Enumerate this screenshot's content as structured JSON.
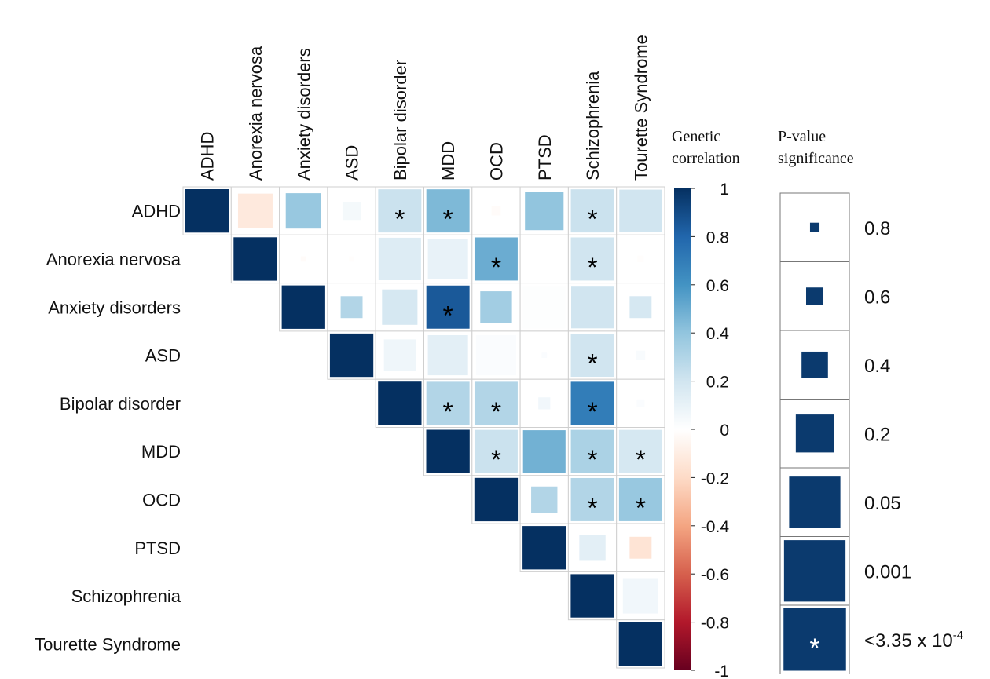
{
  "chart_data": {
    "type": "heatmap",
    "variables": [
      "ADHD",
      "Anorexia nervosa",
      "Anxiety disorders",
      "ASD",
      "Bipolar disorder",
      "MDD",
      "OCD",
      "PTSD",
      "Schizophrenia",
      "Tourette Syndrome"
    ],
    "cells": [
      {
        "row": 0,
        "col": 0,
        "r": 1,
        "p": 0,
        "sig": false
      },
      {
        "row": 0,
        "col": 1,
        "r": -0.12,
        "p": 0.06,
        "sig": false
      },
      {
        "row": 0,
        "col": 2,
        "r": 0.38,
        "p": 0.05,
        "sig": false
      },
      {
        "row": 0,
        "col": 3,
        "r": 0.05,
        "p": 0.4,
        "sig": false
      },
      {
        "row": 0,
        "col": 4,
        "r": 0.22,
        "p": 0.0001,
        "sig": true
      },
      {
        "row": 0,
        "col": 5,
        "r": 0.45,
        "p": 0.0001,
        "sig": true
      },
      {
        "row": 0,
        "col": 6,
        "r": -0.02,
        "p": 0.7,
        "sig": false
      },
      {
        "row": 0,
        "col": 7,
        "r": 0.4,
        "p": 0.02,
        "sig": false
      },
      {
        "row": 0,
        "col": 8,
        "r": 0.22,
        "p": 0.0001,
        "sig": true
      },
      {
        "row": 0,
        "col": 9,
        "r": 0.2,
        "p": 0.001,
        "sig": false
      },
      {
        "row": 1,
        "col": 1,
        "r": 1,
        "p": 0,
        "sig": false
      },
      {
        "row": 1,
        "col": 2,
        "r": -0.02,
        "p": 0.85,
        "sig": false
      },
      {
        "row": 1,
        "col": 3,
        "r": -0.01,
        "p": 0.9,
        "sig": false
      },
      {
        "row": 1,
        "col": 4,
        "r": 0.15,
        "p": 0.001,
        "sig": false
      },
      {
        "row": 1,
        "col": 5,
        "r": 0.1,
        "p": 0.01,
        "sig": false
      },
      {
        "row": 1,
        "col": 6,
        "r": 0.5,
        "p": 0.0001,
        "sig": true
      },
      {
        "row": 1,
        "col": 7,
        "r": 0.0,
        "p": 0.001,
        "sig": false
      },
      {
        "row": 1,
        "col": 8,
        "r": 0.2,
        "p": 0.0001,
        "sig": true
      },
      {
        "row": 1,
        "col": 9,
        "r": -0.01,
        "p": 0.8,
        "sig": false
      },
      {
        "row": 2,
        "col": 2,
        "r": 1,
        "p": 0,
        "sig": false
      },
      {
        "row": 2,
        "col": 3,
        "r": 0.3,
        "p": 0.3,
        "sig": false
      },
      {
        "row": 2,
        "col": 4,
        "r": 0.18,
        "p": 0.05,
        "sig": false
      },
      {
        "row": 2,
        "col": 5,
        "r": 0.85,
        "p": 0.0001,
        "sig": true
      },
      {
        "row": 2,
        "col": 6,
        "r": 0.35,
        "p": 0.1,
        "sig": false
      },
      {
        "row": 2,
        "col": 7,
        "r": 0.01,
        "p": 0.001,
        "sig": false
      },
      {
        "row": 2,
        "col": 8,
        "r": 0.2,
        "p": 0.001,
        "sig": false
      },
      {
        "row": 2,
        "col": 9,
        "r": 0.18,
        "p": 0.3,
        "sig": false
      },
      {
        "row": 3,
        "col": 3,
        "r": 1,
        "p": 0,
        "sig": false
      },
      {
        "row": 3,
        "col": 4,
        "r": 0.07,
        "p": 0.1,
        "sig": false
      },
      {
        "row": 3,
        "col": 5,
        "r": 0.12,
        "p": 0.01,
        "sig": false
      },
      {
        "row": 3,
        "col": 6,
        "r": 0.02,
        "p": 0.01,
        "sig": false
      },
      {
        "row": 3,
        "col": 7,
        "r": 0.02,
        "p": 0.85,
        "sig": false
      },
      {
        "row": 3,
        "col": 8,
        "r": 0.2,
        "p": 0.0001,
        "sig": true
      },
      {
        "row": 3,
        "col": 9,
        "r": 0.03,
        "p": 0.7,
        "sig": false
      },
      {
        "row": 4,
        "col": 4,
        "r": 1,
        "p": 0,
        "sig": false
      },
      {
        "row": 4,
        "col": 5,
        "r": 0.3,
        "p": 0.0001,
        "sig": true
      },
      {
        "row": 4,
        "col": 6,
        "r": 0.3,
        "p": 0.0001,
        "sig": true
      },
      {
        "row": 4,
        "col": 7,
        "r": 0.06,
        "p": 0.6,
        "sig": false
      },
      {
        "row": 4,
        "col": 8,
        "r": 0.7,
        "p": 0.0001,
        "sig": true
      },
      {
        "row": 4,
        "col": 9,
        "r": 0.02,
        "p": 0.75,
        "sig": false
      },
      {
        "row": 5,
        "col": 5,
        "r": 1,
        "p": 0,
        "sig": false
      },
      {
        "row": 5,
        "col": 6,
        "r": 0.22,
        "p": 0.0001,
        "sig": true
      },
      {
        "row": 5,
        "col": 7,
        "r": 0.48,
        "p": 0.001,
        "sig": false
      },
      {
        "row": 5,
        "col": 8,
        "r": 0.32,
        "p": 0.0001,
        "sig": true
      },
      {
        "row": 5,
        "col": 9,
        "r": 0.18,
        "p": 0.0001,
        "sig": true
      },
      {
        "row": 6,
        "col": 6,
        "r": 1,
        "p": 0,
        "sig": false
      },
      {
        "row": 6,
        "col": 7,
        "r": 0.3,
        "p": 0.2,
        "sig": false
      },
      {
        "row": 6,
        "col": 8,
        "r": 0.3,
        "p": 0.0001,
        "sig": true
      },
      {
        "row": 6,
        "col": 9,
        "r": 0.38,
        "p": 0.0001,
        "sig": true
      },
      {
        "row": 7,
        "col": 7,
        "r": 1,
        "p": 0,
        "sig": false
      },
      {
        "row": 7,
        "col": 8,
        "r": 0.12,
        "p": 0.2,
        "sig": false
      },
      {
        "row": 7,
        "col": 9,
        "r": -0.15,
        "p": 0.3,
        "sig": false
      },
      {
        "row": 8,
        "col": 8,
        "r": 1,
        "p": 0,
        "sig": false
      },
      {
        "row": 8,
        "col": 9,
        "r": 0.06,
        "p": 0.05,
        "sig": false
      },
      {
        "row": 9,
        "col": 9,
        "r": 1,
        "p": 0,
        "sig": false
      }
    ],
    "colorbar": {
      "title_line1": "Genetic",
      "title_line2": "correlation",
      "range": [
        -1,
        1
      ],
      "ticks": [
        "1",
        "0.8",
        "0.6",
        "0.4",
        "0.2",
        "0",
        "-0.2",
        "-0.4",
        "-0.6",
        "-0.8",
        "-1"
      ],
      "colors": [
        "#053061",
        "#2166ac",
        "#4393c3",
        "#92c5de",
        "#d1e5f0",
        "#ffffff",
        "#fddbc7",
        "#f4a582",
        "#d6604d",
        "#b2182b",
        "#67001f"
      ]
    },
    "pvalue_legend": {
      "title_line1": "P-value",
      "title_line2": "significance",
      "items": [
        {
          "label": "0.8",
          "p": 0.8
        },
        {
          "label": "0.6",
          "p": 0.6
        },
        {
          "label": "0.4",
          "p": 0.4
        },
        {
          "label": "0.2",
          "p": 0.2
        },
        {
          "label": "0.05",
          "p": 0.05
        },
        {
          "label": "0.001",
          "p": 0.001
        },
        {
          "label": "<3.35 x 10",
          "sup": "-4",
          "p": 0.0001,
          "sig": true
        }
      ],
      "color": "#0b3a6e"
    },
    "significance_marker": "*"
  }
}
